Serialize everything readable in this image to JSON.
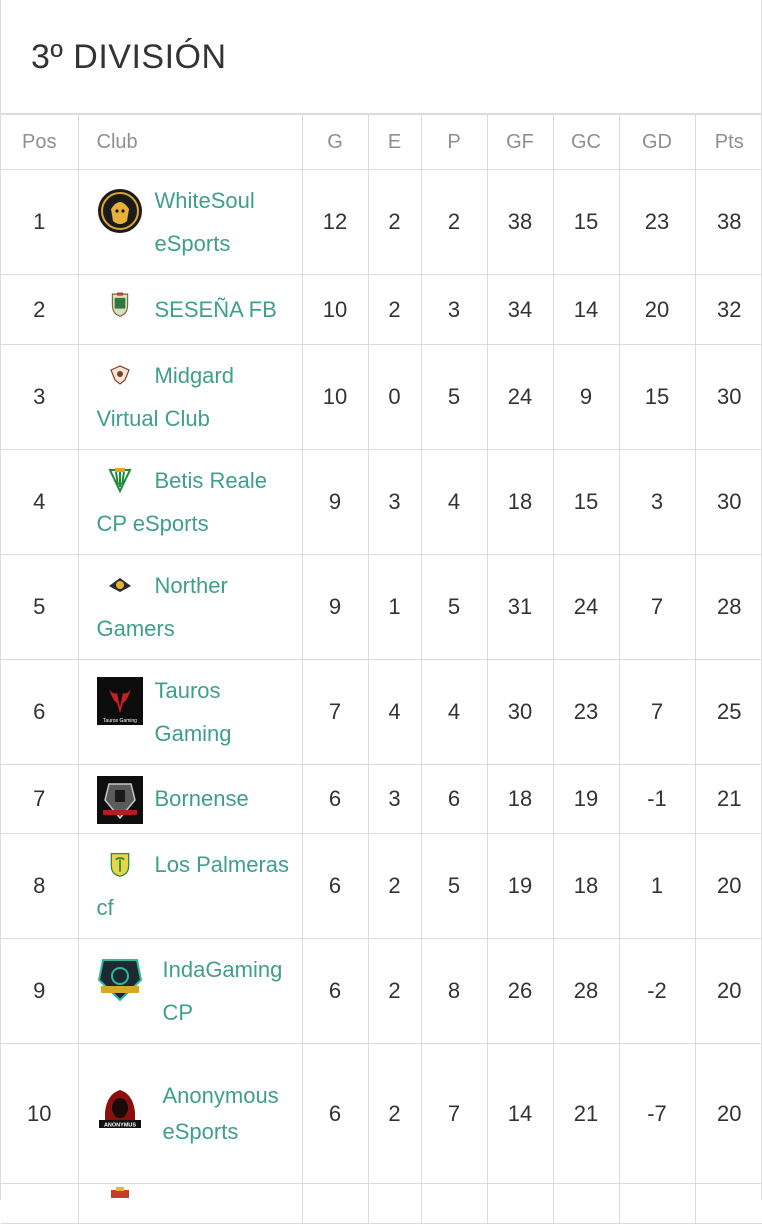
{
  "page": {
    "title": "3º DIVISIÓN"
  },
  "table": {
    "headers": {
      "pos": "Pos",
      "club": "Club",
      "g": "G",
      "e": "E",
      "p": "P",
      "gf": "GF",
      "gc": "GC",
      "gd": "GD",
      "pts": "Pts"
    },
    "rows": [
      {
        "pos": "1",
        "club": "WhiteSoul eSports",
        "logo": "whitesoul-logo",
        "g": "12",
        "e": "2",
        "p": "2",
        "gf": "38",
        "gc": "15",
        "gd": "23",
        "pts": "38"
      },
      {
        "pos": "2",
        "club": "SESEÑA FB",
        "logo": "sesena-logo",
        "g": "10",
        "e": "2",
        "p": "3",
        "gf": "34",
        "gc": "14",
        "gd": "20",
        "pts": "32"
      },
      {
        "pos": "3",
        "club": "Midgard Virtual Club",
        "logo": "midgard-logo",
        "g": "10",
        "e": "0",
        "p": "5",
        "gf": "24",
        "gc": "9",
        "gd": "15",
        "pts": "30"
      },
      {
        "pos": "4",
        "club": "Betis Reale CP eSports",
        "logo": "betis-logo",
        "g": "9",
        "e": "3",
        "p": "4",
        "gf": "18",
        "gc": "15",
        "gd": "3",
        "pts": "30"
      },
      {
        "pos": "5",
        "club": "Norther Gamers",
        "logo": "norther-logo",
        "g": "9",
        "e": "1",
        "p": "5",
        "gf": "31",
        "gc": "24",
        "gd": "7",
        "pts": "28"
      },
      {
        "pos": "6",
        "club": "Tauros Gaming",
        "logo": "tauros-logo",
        "logo_text": "Tauros Gaming",
        "g": "7",
        "e": "4",
        "p": "4",
        "gf": "30",
        "gc": "23",
        "gd": "7",
        "pts": "25"
      },
      {
        "pos": "7",
        "club": "Bornense",
        "logo": "bornense-logo",
        "g": "6",
        "e": "3",
        "p": "6",
        "gf": "18",
        "gc": "19",
        "gd": "-1",
        "pts": "21"
      },
      {
        "pos": "8",
        "club": "Los Palmeras cf",
        "logo": "palmeras-logo",
        "g": "6",
        "e": "2",
        "p": "5",
        "gf": "19",
        "gc": "18",
        "gd": "1",
        "pts": "20"
      },
      {
        "pos": "9",
        "club": "IndaGaming CP",
        "logo": "indagaming-logo",
        "g": "6",
        "e": "2",
        "p": "8",
        "gf": "26",
        "gc": "28",
        "gd": "-2",
        "pts": "20"
      },
      {
        "pos": "10",
        "club": "Anonymous eSports",
        "logo": "anonymous-logo",
        "logo_text": "ANONYMUS",
        "g": "6",
        "e": "2",
        "p": "7",
        "gf": "14",
        "gc": "21",
        "gd": "-7",
        "pts": "20"
      }
    ]
  },
  "colors": {
    "club_link": "#3f9e8c",
    "header_text": "#8f8f8f",
    "body_text": "#333333",
    "border": "#dcdcdc"
  }
}
